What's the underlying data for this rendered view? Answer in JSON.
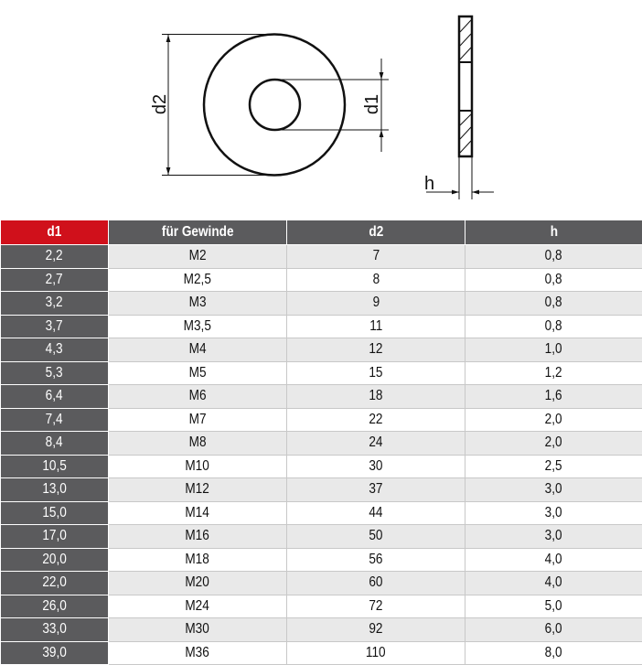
{
  "drawing": {
    "label_d2": "d2",
    "label_d1": "d1",
    "label_h": "h"
  },
  "table": {
    "headers": [
      "d1",
      "für Gewinde",
      "d2",
      "h"
    ],
    "rows": [
      [
        "2,2",
        "M2",
        "7",
        "0,8"
      ],
      [
        "2,7",
        "M2,5",
        "8",
        "0,8"
      ],
      [
        "3,2",
        "M3",
        "9",
        "0,8"
      ],
      [
        "3,7",
        "M3,5",
        "11",
        "0,8"
      ],
      [
        "4,3",
        "M4",
        "12",
        "1,0"
      ],
      [
        "5,3",
        "M5",
        "15",
        "1,2"
      ],
      [
        "6,4",
        "M6",
        "18",
        "1,6"
      ],
      [
        "7,4",
        "M7",
        "22",
        "2,0"
      ],
      [
        "8,4",
        "M8",
        "24",
        "2,0"
      ],
      [
        "10,5",
        "M10",
        "30",
        "2,5"
      ],
      [
        "13,0",
        "M12",
        "37",
        "3,0"
      ],
      [
        "15,0",
        "M14",
        "44",
        "3,0"
      ],
      [
        "17,0",
        "M16",
        "50",
        "3,0"
      ],
      [
        "20,0",
        "M18",
        "56",
        "4,0"
      ],
      [
        "22,0",
        "M20",
        "60",
        "4,0"
      ],
      [
        "26,0",
        "M24",
        "72",
        "5,0"
      ],
      [
        "33,0",
        "M30",
        "92",
        "6,0"
      ],
      [
        "39,0",
        "M36",
        "110",
        "8,0"
      ]
    ]
  },
  "colors": {
    "header": "#5b5b5d",
    "accent": "#d0101b",
    "row_alt": "#e9e9e9"
  }
}
